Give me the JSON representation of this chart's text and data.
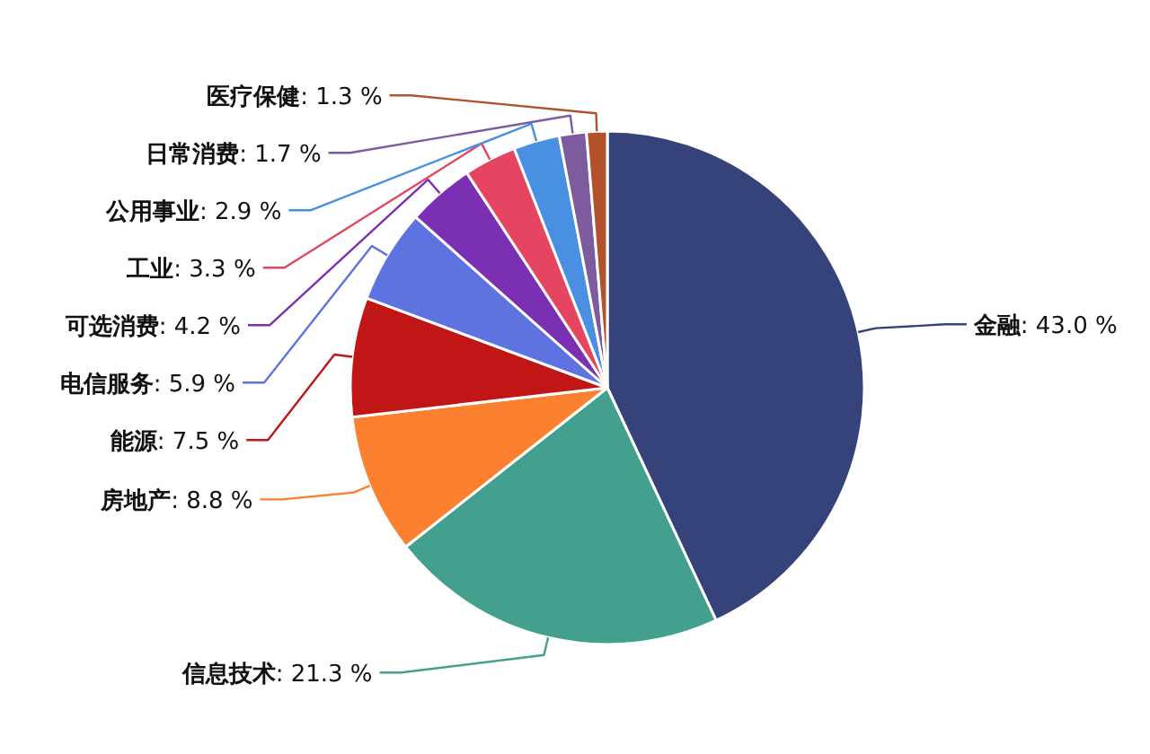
{
  "chart_data": {
    "type": "pie",
    "categories": [
      "金融",
      "信息技术",
      "房地产",
      "能源",
      "电信服务",
      "可选消费",
      "工业",
      "公用事业",
      "日常消费",
      "医疗保健"
    ],
    "values": [
      43.0,
      21.3,
      8.8,
      7.5,
      5.9,
      4.2,
      3.3,
      2.9,
      1.7,
      1.3
    ],
    "value_labels": [
      ": 43.0 %",
      ": 21.3 %",
      ": 8.8 %",
      ": 7.5 %",
      ": 5.9 %",
      ": 4.2 %",
      ": 3.3 %",
      ": 2.9 %",
      ": 1.7 %",
      ": 1.3 %"
    ],
    "colors": [
      "#36427a",
      "#43a08e",
      "#fb8130",
      "#c01616",
      "#5f73e0",
      "#7b2fb3",
      "#e64562",
      "#4a90e2",
      "#7c5b9e",
      "#b2512b"
    ]
  }
}
